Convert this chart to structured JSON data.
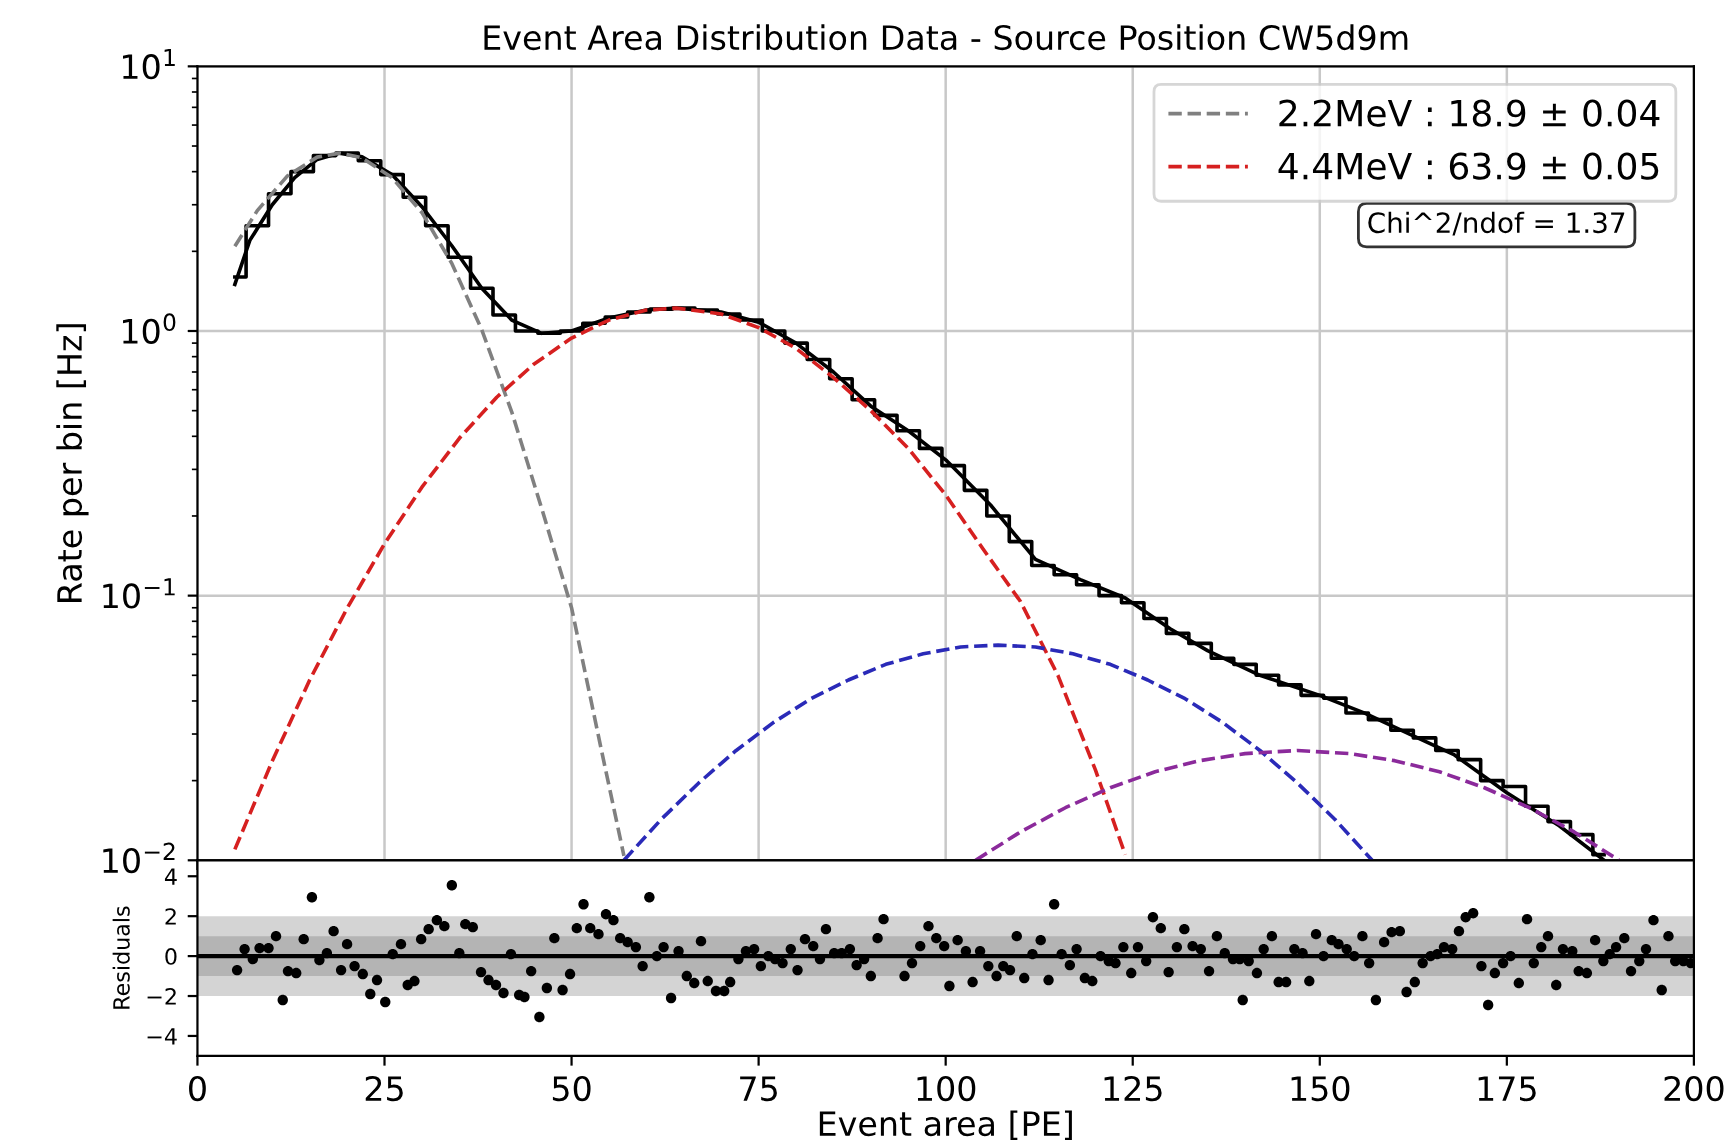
{
  "chart_data": [
    {
      "type": "line",
      "title": "Event Area Distribution Data - Source Position CW5d9m",
      "ylabel": "Rate per bin [Hz]",
      "xlim": [
        0,
        200
      ],
      "xticks": [
        0,
        25,
        50,
        75,
        100,
        125,
        150,
        175,
        200
      ],
      "ylim": [
        0.01,
        10
      ],
      "yticks": [
        {
          "value": 0.01,
          "label": "10$^{−2}$"
        },
        {
          "value": 0.1,
          "label": "10$^{−1}$"
        },
        {
          "value": 1,
          "label": "10$^{0}$"
        },
        {
          "value": 10,
          "label": "10$^{1}$"
        }
      ],
      "log": "y",
      "grid": true,
      "legend": "top right",
      "tick_labels": "y",
      "annotations": [
        "Chi^2/ndof = 1.37"
      ],
      "series": [
        {
          "type": "step",
          "color": "#000000",
          "x": [
            5,
            8,
            11,
            14,
            17,
            20,
            23,
            26,
            29,
            32,
            35,
            38,
            41,
            44,
            47,
            50,
            53,
            56,
            59,
            62,
            65,
            68,
            71,
            74,
            77,
            80,
            83,
            86,
            89,
            92,
            95,
            98,
            101,
            104,
            107,
            110,
            113,
            116,
            119,
            122,
            125,
            128,
            131,
            134,
            137,
            140,
            143,
            146,
            149,
            152,
            155,
            158,
            161,
            164,
            167,
            170,
            173,
            176,
            179,
            182,
            185,
            188
          ],
          "values": [
            1.6,
            2.5,
            3.3,
            4.0,
            4.6,
            4.7,
            4.4,
            3.9,
            3.2,
            2.5,
            1.9,
            1.45,
            1.15,
            1.0,
            0.98,
            1.0,
            1.07,
            1.13,
            1.18,
            1.21,
            1.22,
            1.2,
            1.16,
            1.1,
            1.0,
            0.9,
            0.78,
            0.66,
            0.55,
            0.48,
            0.42,
            0.36,
            0.31,
            0.25,
            0.2,
            0.16,
            0.13,
            0.12,
            0.11,
            0.1,
            0.094,
            0.082,
            0.072,
            0.066,
            0.058,
            0.055,
            0.05,
            0.046,
            0.042,
            0.041,
            0.036,
            0.034,
            0.031,
            0.029,
            0.026,
            0.024,
            0.02,
            0.019,
            0.016,
            0.014,
            0.0125,
            0.0105
          ]
        },
        {
          "type": "line",
          "color": "#000000",
          "x": [
            5,
            7,
            10,
            13,
            16,
            19,
            22,
            26,
            30,
            34,
            38,
            42,
            46,
            50,
            55,
            60,
            64,
            70,
            75,
            80,
            85,
            90,
            95,
            100,
            106,
            112,
            118,
            124,
            130,
            135,
            142,
            150,
            156,
            162,
            168,
            175,
            182,
            188
          ],
          "values": [
            1.5,
            2.2,
            3.0,
            3.8,
            4.45,
            4.7,
            4.55,
            3.9,
            2.95,
            2.1,
            1.45,
            1.1,
            0.98,
            1.0,
            1.12,
            1.2,
            1.22,
            1.18,
            1.08,
            0.9,
            0.7,
            0.52,
            0.42,
            0.326,
            0.22,
            0.137,
            0.115,
            0.098,
            0.075,
            0.062,
            0.05,
            0.042,
            0.036,
            0.03,
            0.025,
            0.018,
            0.0135,
            0.01
          ]
        },
        {
          "type": "line",
          "name": "2.2MeV : 18.9 ± 0.04",
          "color": "#808080",
          "line_style": "dashed",
          "x": [
            5,
            8,
            12,
            16,
            19,
            22,
            26,
            30,
            34,
            38,
            42,
            46,
            50,
            54,
            57
          ],
          "values": [
            2.09,
            2.85,
            3.85,
            4.54,
            4.7,
            4.51,
            3.8,
            2.8,
            1.8,
            1.01,
            0.495,
            0.214,
            0.09,
            0.026,
            0.0104
          ]
        },
        {
          "type": "line",
          "name": "4.4MeV : 63.9 ± 0.05",
          "color": "#d62020",
          "line_style": "dashed",
          "x": [
            5,
            10,
            15,
            20,
            25,
            30,
            35,
            40,
            45,
            50,
            55,
            60,
            64,
            70,
            75,
            80,
            85,
            90,
            95,
            100,
            105,
            110,
            115,
            120,
            124
          ],
          "values": [
            0.011,
            0.0237,
            0.048,
            0.0896,
            0.157,
            0.257,
            0.393,
            0.562,
            0.751,
            0.94,
            1.1,
            1.2,
            1.22,
            1.16,
            1.03,
            0.86,
            0.667,
            0.5,
            0.36,
            0.24,
            0.15,
            0.095,
            0.05,
            0.022,
            0.0105
          ]
        },
        {
          "type": "line",
          "color": "#2a2ab8",
          "line_style": "dashed",
          "x": [
            57,
            62,
            67,
            72,
            77,
            82,
            87,
            92,
            97,
            102,
            107,
            112,
            117,
            122,
            127,
            132,
            137,
            142,
            147,
            152,
            157
          ],
          "values": [
            0.01,
            0.0143,
            0.0196,
            0.026,
            0.0332,
            0.0408,
            0.048,
            0.055,
            0.0603,
            0.064,
            0.065,
            0.064,
            0.0603,
            0.055,
            0.048,
            0.0408,
            0.0332,
            0.026,
            0.0196,
            0.0143,
            0.01
          ]
        },
        {
          "type": "line",
          "color": "#8b2a9b",
          "line_style": "dashed",
          "x": [
            104,
            110,
            116,
            122,
            128,
            134,
            140,
            147,
            154,
            160,
            166,
            172,
            178,
            184,
            190
          ],
          "values": [
            0.01,
            0.0128,
            0.0158,
            0.0188,
            0.0216,
            0.0238,
            0.0253,
            0.026,
            0.0253,
            0.0238,
            0.0216,
            0.0188,
            0.0158,
            0.0128,
            0.01
          ]
        }
      ]
    },
    {
      "type": "scatter",
      "xlabel": "Event area [PE]",
      "ylabel": "Residuals",
      "xlim": [
        0,
        200
      ],
      "xticks": [
        0,
        25,
        50,
        75,
        100,
        125,
        150,
        175,
        200
      ],
      "ylim": [
        -5,
        4.8
      ],
      "yticks": [
        {
          "value": -4,
          "label": "−4"
        },
        {
          "value": -2,
          "label": "−2"
        },
        0,
        2,
        4
      ],
      "marker": "circle",
      "ref_lines": [
        {
          "axis": "y",
          "value": 0,
          "color": "#000000"
        }
      ],
      "bands": [
        {
          "axis": "y",
          "from": -2,
          "to": 2,
          "color": "#d4d4d4"
        },
        {
          "axis": "y",
          "from": -1,
          "to": 1,
          "color": "#b4b4b4"
        }
      ],
      "series": [
        {
          "color": "#000000",
          "x": [
            5.3,
            6.3,
            7.4,
            8.3,
            9.5,
            10.5,
            11.4,
            12.1,
            13.2,
            14.2,
            15.3,
            16.3,
            17.3,
            18.2,
            19.2,
            20,
            21,
            22.1,
            23.1,
            24,
            25.1,
            26.1,
            27.2,
            28.1,
            29,
            29.9,
            30.9,
            32,
            33,
            34,
            35,
            35.8,
            36.8,
            37.9,
            38.9,
            39.9,
            40.9,
            41.9,
            43,
            43.7,
            44.6,
            45.7,
            46.7,
            47.7,
            48.8,
            49.8,
            50.7,
            51.6,
            52.5,
            53.6,
            54.6,
            55.6,
            56.5,
            57.5,
            58.6,
            59.5,
            60.4,
            61.4,
            62.3,
            63.3,
            64.3,
            65.4,
            66.4,
            67.3,
            68.2,
            69.3,
            70.4,
            71.2,
            72.3,
            73.3,
            74.4,
            75.3,
            76.3,
            77.2,
            78.2,
            79.3,
            80.2,
            81.2,
            82.3,
            83.2,
            84,
            85.1,
            86.1,
            87.2,
            88.1,
            89.1,
            90,
            90.9,
            91.7,
            94.5,
            95.5,
            96.6,
            97.7,
            98.75,
            99.8,
            100.5,
            101.6,
            102.7,
            103.6,
            104.6,
            105.7,
            106.8,
            107.7,
            108.6,
            109.5,
            110.5,
            111.6,
            112.7,
            113.75,
            114.5,
            115.5,
            116.6,
            117.5,
            118.6,
            119.6,
            120.7,
            121.8,
            122.7,
            123.75,
            124.8,
            125.7,
            126.8,
            127.7,
            128.75,
            129.8,
            130.9,
            131.9,
            133,
            134.1,
            135.2,
            136.25,
            137.3,
            138.4,
            139.3,
            139.7,
            140.5,
            141.6,
            142.5,
            143.6,
            144.5,
            145.5,
            146.6,
            147.7,
            148.6,
            149.5,
            150.5,
            151.6,
            152.5,
            153.6,
            154.6,
            155.7,
            156.6,
            157.5,
            158.6,
            159.6,
            160.7,
            161.6,
            162.7,
            163.75,
            164.8,
            165.7,
            166.6,
            167.7,
            168.6,
            169.5,
            170.5,
            171.6,
            172.5,
            173.4,
            174.5,
            175.5,
            176.6,
            177.7,
            178.6,
            179.6,
            180.5,
            181.6,
            182.5,
            183.75,
            184.6,
            185.7,
            186.8,
            187.9,
            188.75,
            189.6,
            190.7,
            191.6,
            192.7,
            193.6,
            194.6,
            195.7,
            196.6,
            197.5,
            198.6,
            199.6
          ],
          "values": [
            -0.7,
            0.35,
            -0.15,
            0.4,
            0.4,
            1.0,
            -2.2,
            -0.75,
            -0.85,
            0.85,
            2.95,
            -0.2,
            0.15,
            1.25,
            -0.7,
            0.6,
            -0.5,
            -0.9,
            -1.9,
            -1.2,
            -2.3,
            0.1,
            0.6,
            -1.45,
            -1.25,
            0.85,
            1.35,
            1.8,
            1.5,
            3.55,
            0.15,
            1.6,
            1.45,
            -0.8,
            -1.2,
            -1.45,
            -1.85,
            0.1,
            -1.95,
            -2.05,
            -0.75,
            -3.05,
            -1.6,
            0.9,
            -1.7,
            -0.9,
            1.4,
            2.6,
            1.4,
            1.1,
            2.1,
            1.8,
            0.9,
            0.7,
            0.45,
            -0.5,
            2.95,
            0,
            0.45,
            -2.1,
            0.25,
            -1.0,
            -1.35,
            0.75,
            -1.25,
            -1.75,
            -1.75,
            -1.3,
            -0.15,
            0.25,
            0.35,
            -0.5,
            0,
            -0.15,
            -0.35,
            0.35,
            -0.7,
            0.85,
            0.5,
            -0.15,
            1.35,
            0.15,
            0.15,
            0.35,
            -0.45,
            -0.15,
            -1.0,
            0.9,
            1.85,
            -1.0,
            -0.35,
            0.5,
            1.5,
            0.9,
            0.5,
            -1.5,
            0.8,
            0.25,
            -1.3,
            0.25,
            -0.5,
            -1.0,
            -0.5,
            -0.7,
            1.0,
            -1.1,
            0.1,
            0.8,
            -1.2,
            2.6,
            0.1,
            -0.45,
            0.35,
            -1.1,
            -1.25,
            0,
            -0.25,
            -0.35,
            0.45,
            -0.85,
            0.45,
            -0.25,
            1.95,
            1.4,
            -0.8,
            0.45,
            1.35,
            0.5,
            0.35,
            -0.75,
            1.0,
            0.15,
            -0.15,
            -0.15,
            -2.2,
            -0.25,
            -0.85,
            0.35,
            1.0,
            -1.3,
            -1.3,
            0.35,
            0.15,
            -1.25,
            1.1,
            0,
            0.8,
            0.6,
            0.35,
            0,
            1.0,
            -0.35,
            -2.2,
            0.7,
            1.2,
            1.25,
            -1.8,
            -1.3,
            -0.35,
            0,
            0.1,
            0.45,
            0.35,
            1.25,
            1.95,
            2.15,
            -0.5,
            -2.45,
            -0.85,
            -0.35,
            0,
            -1.35,
            1.85,
            -0.35,
            0.45,
            1.0,
            -1.45,
            0.35,
            0.25,
            -0.75,
            -0.85,
            0.8,
            -0.25,
            0.1,
            0.45,
            0.9,
            -0.75,
            -0.25,
            0.35,
            1.8,
            -1.7,
            1.0,
            -0.25,
            -0.25,
            -0.35
          ]
        }
      ]
    }
  ]
}
